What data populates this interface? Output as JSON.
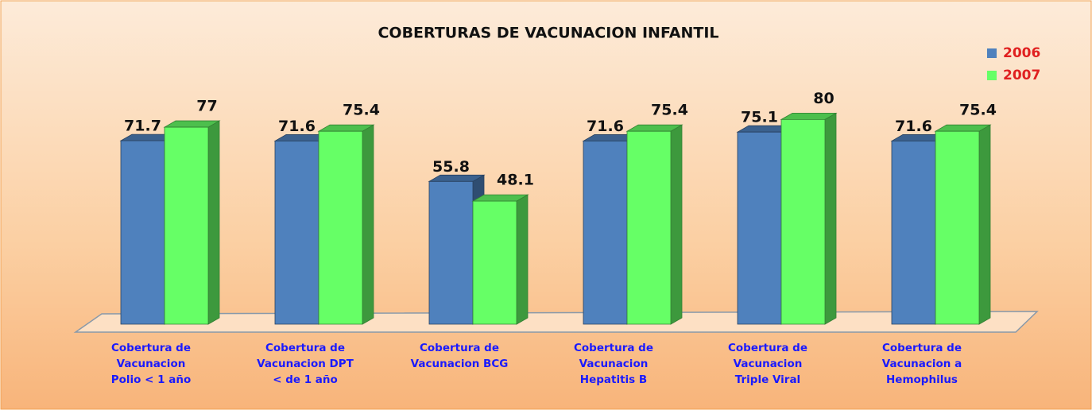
{
  "chart_data": {
    "type": "bar3d",
    "title": "COBERTURAS DE VACUNACION INFANTIL",
    "categories": [
      "Cobertura de\nVacunacion\nPolio < 1 año",
      "Cobertura de\nVacunacion DPT\n< de 1 año",
      "Cobertura de\nVacunacion BCG",
      "Cobertura de\nVacunacion\nHepatitis B",
      "Cobertura de\nVacunacion\nTriple Viral",
      "Cobertura de\nVacunacion a\nHemophilus"
    ],
    "series": [
      {
        "name": "2006",
        "color": "#4f81bd",
        "values": [
          71.7,
          71.6,
          55.8,
          71.6,
          75.1,
          71.6
        ]
      },
      {
        "name": "2007",
        "color": "#66ff66",
        "values": [
          77,
          75.4,
          48.1,
          75.4,
          80,
          75.4
        ]
      }
    ],
    "legend": "top-right"
  }
}
